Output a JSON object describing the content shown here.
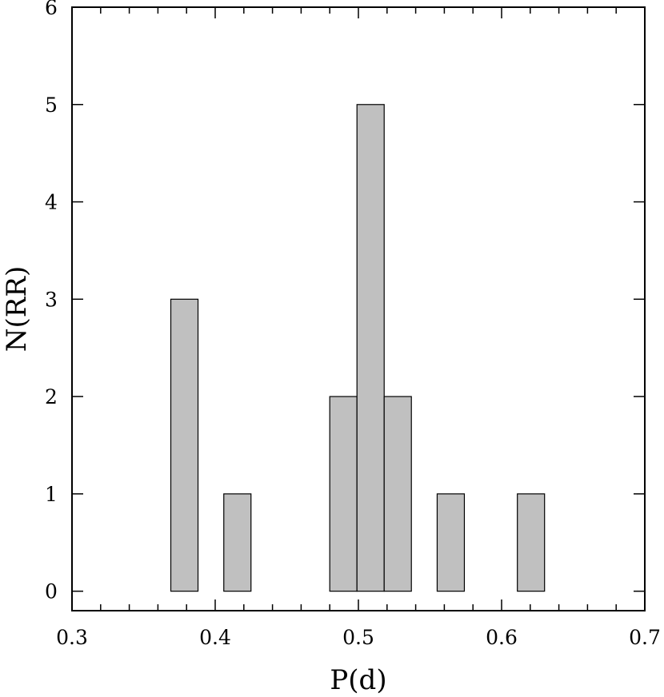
{
  "chart_data": {
    "type": "bar",
    "title": "",
    "xlabel": "P(d)",
    "ylabel": "N(RR)",
    "xlim": [
      0.3,
      0.7
    ],
    "ylim": [
      -0.2,
      6
    ],
    "x_ticks": [
      "0.3",
      "0.4",
      "0.5",
      "0.6",
      "0.7"
    ],
    "y_ticks": [
      "0",
      "1",
      "2",
      "3",
      "4",
      "5",
      "6"
    ],
    "grid": false,
    "bin_width": 0.019,
    "bar_color": "#c0c0c0",
    "bins": [
      {
        "x0": 0.369,
        "x1": 0.388,
        "count": 3
      },
      {
        "x0": 0.406,
        "x1": 0.425,
        "count": 1
      },
      {
        "x0": 0.48,
        "x1": 0.499,
        "count": 2
      },
      {
        "x0": 0.499,
        "x1": 0.518,
        "count": 5
      },
      {
        "x0": 0.518,
        "x1": 0.537,
        "count": 2
      },
      {
        "x0": 0.555,
        "x1": 0.574,
        "count": 1
      },
      {
        "x0": 0.611,
        "x1": 0.63,
        "count": 1
      }
    ]
  }
}
